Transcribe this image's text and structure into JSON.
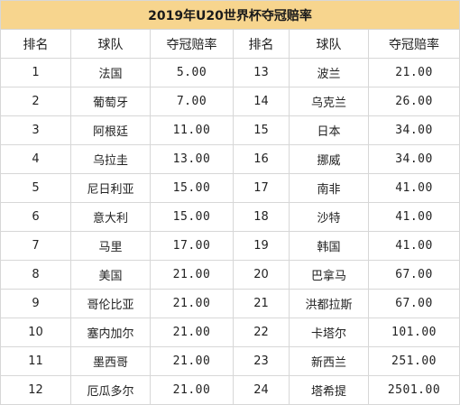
{
  "title": "2019年U20世界杯夺冠赔率",
  "headers": [
    "排名",
    "球队",
    "夺冠赔率",
    "排名",
    "球队",
    "夺冠赔率"
  ],
  "rows": [
    {
      "rank_a": "1",
      "team_a": "法国",
      "odds_a": "5.00",
      "rank_b": "13",
      "team_b": "波兰",
      "odds_b": "21.00"
    },
    {
      "rank_a": "2",
      "team_a": "葡萄牙",
      "odds_a": "7.00",
      "rank_b": "14",
      "team_b": "乌克兰",
      "odds_b": "26.00"
    },
    {
      "rank_a": "3",
      "team_a": "阿根廷",
      "odds_a": "11.00",
      "rank_b": "15",
      "team_b": "日本",
      "odds_b": "34.00"
    },
    {
      "rank_a": "4",
      "team_a": "乌拉圭",
      "odds_a": "13.00",
      "rank_b": "16",
      "team_b": "挪威",
      "odds_b": "34.00"
    },
    {
      "rank_a": "5",
      "team_a": "尼日利亚",
      "odds_a": "15.00",
      "rank_b": "17",
      "team_b": "南非",
      "odds_b": "41.00"
    },
    {
      "rank_a": "6",
      "team_a": "意大利",
      "odds_a": "15.00",
      "rank_b": "18",
      "team_b": "沙特",
      "odds_b": "41.00"
    },
    {
      "rank_a": "7",
      "team_a": "马里",
      "odds_a": "17.00",
      "rank_b": "19",
      "team_b": "韩国",
      "odds_b": "41.00"
    },
    {
      "rank_a": "8",
      "team_a": "美国",
      "odds_a": "21.00",
      "rank_b": "20",
      "team_b": "巴拿马",
      "odds_b": "67.00"
    },
    {
      "rank_a": "9",
      "team_a": "哥伦比亚",
      "odds_a": "21.00",
      "rank_b": "21",
      "team_b": "洪都拉斯",
      "odds_b": "67.00"
    },
    {
      "rank_a": "10",
      "team_a": "塞内加尔",
      "odds_a": "21.00",
      "rank_b": "22",
      "team_b": "卡塔尔",
      "odds_b": "101.00"
    },
    {
      "rank_a": "11",
      "team_a": "墨西哥",
      "odds_a": "21.00",
      "rank_b": "23",
      "team_b": "新西兰",
      "odds_b": "251.00"
    },
    {
      "rank_a": "12",
      "team_a": "厄瓜多尔",
      "odds_a": "21.00",
      "rank_b": "24",
      "team_b": "塔希提",
      "odds_b": "2501.00"
    }
  ],
  "colors": {
    "title_background": "#f7d58e",
    "grid_line": "#d7d7d7"
  }
}
